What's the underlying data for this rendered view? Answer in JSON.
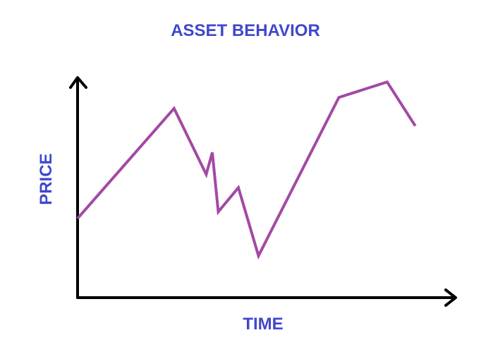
{
  "chart_data": {
    "type": "line",
    "title": "ASSET BEHAVIOR",
    "xlabel": "TIME",
    "ylabel": "PRICE",
    "grid": false,
    "legend": "none",
    "axis_ticks": false,
    "series": [
      {
        "x": [
          0,
          24,
          32,
          33.5,
          35,
          40,
          45,
          65,
          77,
          84
        ],
        "y": [
          36,
          86,
          56,
          66,
          39,
          50,
          19,
          91,
          98,
          78
        ]
      }
    ],
    "xlim": [
      0,
      100
    ],
    "ylim": [
      0,
      100
    ]
  },
  "colors": {
    "text": "#3f48cc",
    "line": "#a349a4",
    "axis": "#000000"
  }
}
